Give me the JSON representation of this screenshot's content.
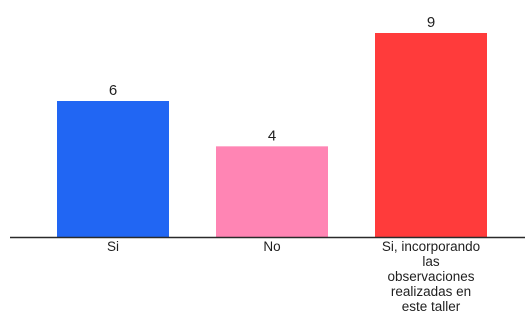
{
  "chart_data": {
    "type": "bar",
    "categories": [
      [
        "Si"
      ],
      [
        "No"
      ],
      [
        "Si, incorporando",
        "las",
        "observaciones",
        "realizadas en",
        "este taller"
      ]
    ],
    "values": [
      6,
      4,
      9
    ],
    "value_labels": [
      "6",
      "4",
      "9"
    ],
    "colors": [
      "#2166f3",
      "#ff85b4",
      "#ff3b3b"
    ],
    "axis_color": "#2a2a2a",
    "title": "",
    "xlabel": "",
    "ylabel": "",
    "ylim": [
      0,
      9
    ],
    "grid": false,
    "legend": "none"
  }
}
